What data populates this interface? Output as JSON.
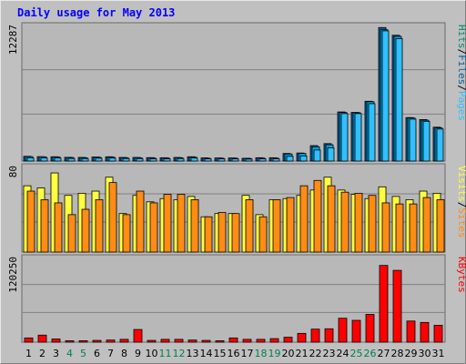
{
  "title": "Daily usage for May 2013",
  "colors": {
    "pages": "#00a0e0",
    "pages_dark": "#0060a0",
    "files": "#30c0ff",
    "hits": "#008c6a",
    "visits": "#ffff40",
    "sites": "#ff8c14",
    "kbytes": "#ff0000",
    "weekend_day": "#00804a",
    "weekday_day": "#000000",
    "separator": "#000000"
  },
  "chart_data": [
    {
      "type": "bar",
      "name": "hits-files-pages",
      "max_label": "12287",
      "legend": [
        "Pages",
        "/",
        "Files",
        "/",
        "Hits"
      ],
      "categories": [
        "1",
        "2",
        "3",
        "4",
        "5",
        "6",
        "7",
        "8",
        "9",
        "10",
        "11",
        "12",
        "13",
        "14",
        "15",
        "16",
        "17",
        "18",
        "19",
        "20",
        "21",
        "22",
        "23",
        "24",
        "25",
        "26",
        "27",
        "28",
        "29",
        "30",
        "31"
      ],
      "weekend": [
        "4",
        "5",
        "11",
        "12",
        "18",
        "19",
        "25",
        "26"
      ],
      "ymax": 12287,
      "series": [
        {
          "name": "Hits",
          "values": [
            430,
            400,
            390,
            340,
            330,
            370,
            390,
            330,
            330,
            310,
            300,
            330,
            390,
            290,
            280,
            280,
            250,
            300,
            300,
            690,
            730,
            1400,
            1580,
            4450,
            4410,
            5420,
            12100,
            11400,
            3940,
            3760,
            3070
          ]
        },
        {
          "name": "Files",
          "values": [
            400,
            380,
            360,
            320,
            300,
            340,
            350,
            300,
            300,
            280,
            280,
            300,
            350,
            260,
            260,
            260,
            240,
            270,
            270,
            640,
            690,
            1300,
            1480,
            4400,
            4380,
            5380,
            11900,
            11300,
            3900,
            3700,
            3000
          ]
        },
        {
          "name": "Pages",
          "values": [
            300,
            280,
            270,
            240,
            230,
            260,
            270,
            230,
            230,
            210,
            210,
            230,
            270,
            200,
            200,
            200,
            180,
            210,
            210,
            430,
            470,
            1000,
            1200,
            4300,
            4300,
            5200,
            11800,
            11100,
            3800,
            3600,
            2900
          ]
        }
      ]
    },
    {
      "type": "bar",
      "name": "visits-sites",
      "max_label": "80",
      "legend": [
        "Sites",
        "/",
        "Visits"
      ],
      "categories": [
        "1",
        "2",
        "3",
        "4",
        "5",
        "6",
        "7",
        "8",
        "9",
        "10",
        "11",
        "12",
        "13",
        "14",
        "15",
        "16",
        "17",
        "18",
        "19",
        "20",
        "21",
        "22",
        "23",
        "24",
        "25",
        "26",
        "27",
        "28",
        "29",
        "30",
        "31"
      ],
      "ymax": 80,
      "series": [
        {
          "name": "Visits",
          "values": [
            62,
            60,
            74,
            53,
            55,
            57,
            70,
            36,
            53,
            47,
            50,
            49,
            52,
            33,
            36,
            36,
            53,
            35,
            49,
            50,
            53,
            58,
            70,
            58,
            54,
            50,
            61,
            52,
            49,
            57,
            55
          ]
        },
        {
          "name": "Sites",
          "values": [
            57,
            49,
            46,
            35,
            40,
            49,
            65,
            35,
            57,
            46,
            54,
            54,
            49,
            33,
            37,
            36,
            49,
            33,
            49,
            51,
            62,
            67,
            62,
            56,
            55,
            53,
            46,
            45,
            45,
            51,
            49
          ]
        }
      ]
    },
    {
      "type": "bar",
      "name": "kbytes",
      "max_label": "120250",
      "legend": [
        "KBytes"
      ],
      "categories": [
        "1",
        "2",
        "3",
        "4",
        "5",
        "6",
        "7",
        "8",
        "9",
        "10",
        "11",
        "12",
        "13",
        "14",
        "15",
        "16",
        "17",
        "18",
        "19",
        "20",
        "21",
        "22",
        "23",
        "24",
        "25",
        "26",
        "27",
        "28",
        "29",
        "30",
        "31"
      ],
      "ymax": 120250,
      "series": [
        {
          "name": "KBytes",
          "values": [
            6000,
            10000,
            4500,
            2000,
            2000,
            2500,
            3000,
            4000,
            18000,
            2500,
            4000,
            4000,
            3000,
            2500,
            2000,
            6000,
            4000,
            4000,
            5000,
            7000,
            12500,
            18500,
            19000,
            34000,
            31000,
            39500,
            109000,
            102000,
            30000,
            28000,
            24000
          ]
        }
      ]
    }
  ]
}
